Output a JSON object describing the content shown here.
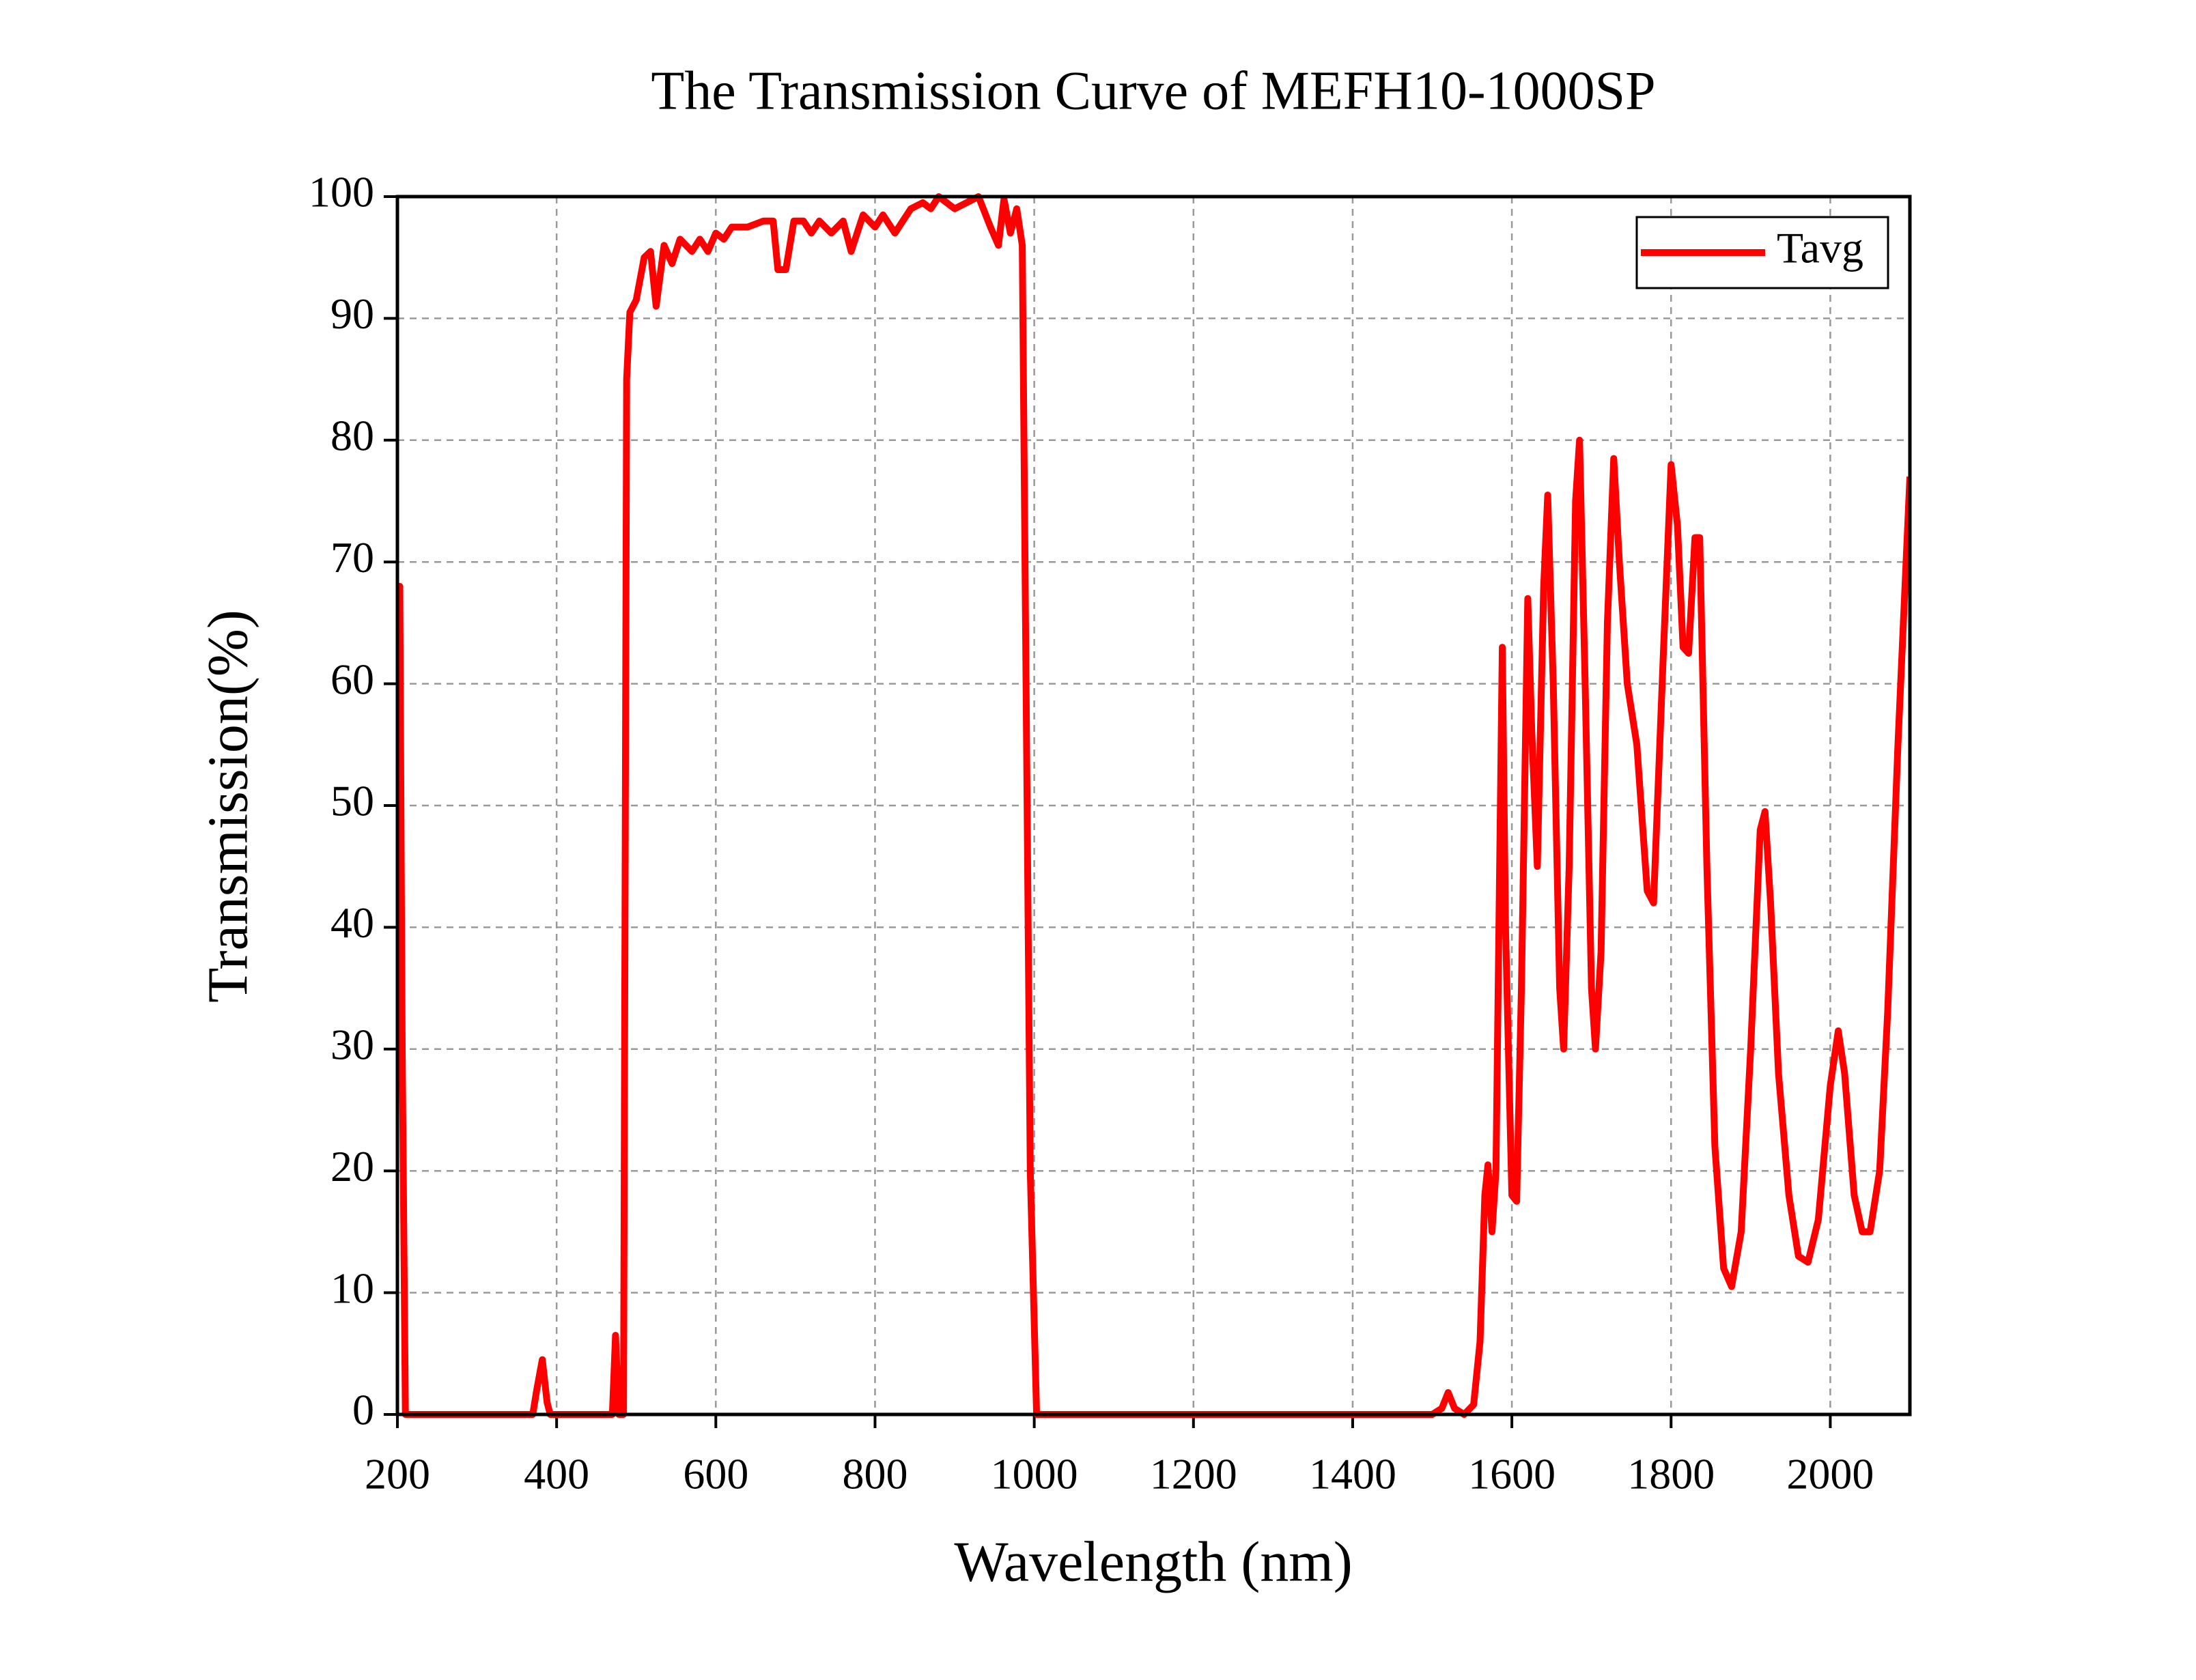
{
  "chart_data": {
    "type": "line",
    "title": "The Transmission Curve of MEFH10-1000SP",
    "x_label": "Wavelength (nm)",
    "y_label": "Transmission(%)",
    "xlim": [
      200,
      2100
    ],
    "xticks": [
      200,
      400,
      600,
      800,
      1000,
      1200,
      1400,
      1600,
      1800,
      2000
    ],
    "ylim": [
      0,
      100
    ],
    "yticks": [
      0,
      10,
      20,
      30,
      40,
      50,
      60,
      70,
      80,
      90,
      100
    ],
    "grid": true,
    "legend": "upper right",
    "x": [
      200,
      203,
      206,
      210,
      300,
      370,
      375,
      382,
      388,
      392,
      470,
      474,
      478,
      484,
      488,
      492,
      500,
      510,
      518,
      525,
      535,
      545,
      555,
      570,
      580,
      590,
      600,
      610,
      620,
      640,
      660,
      672,
      678,
      688,
      698,
      710,
      720,
      730,
      745,
      760,
      770,
      785,
      800,
      810,
      825,
      845,
      860,
      870,
      880,
      890,
      900,
      915,
      930,
      945,
      955,
      962,
      970,
      978,
      985,
      995,
      1003,
      1100,
      1500,
      1512,
      1520,
      1528,
      1540,
      1552,
      1560,
      1566,
      1570,
      1575,
      1580,
      1588,
      1592,
      1600,
      1606,
      1612,
      1620,
      1625,
      1632,
      1640,
      1645,
      1652,
      1660,
      1665,
      1672,
      1680,
      1685,
      1692,
      1700,
      1705,
      1712,
      1720,
      1728,
      1735,
      1745,
      1757,
      1770,
      1778,
      1790,
      1800,
      1808,
      1815,
      1822,
      1830,
      1836,
      1845,
      1855,
      1866,
      1876,
      1888,
      1900,
      1912,
      1918,
      1925,
      1935,
      1948,
      1960,
      1972,
      1985,
      2000,
      2010,
      2018,
      2030,
      2040,
      2050,
      2062,
      2072,
      2085,
      2100
    ],
    "series": [
      {
        "name": "Tavg",
        "color": "#ff0000",
        "values": [
          68,
          68,
          30,
          0,
          0,
          0,
          2,
          4.5,
          1,
          0,
          0,
          6.5,
          0,
          0,
          85,
          90.5,
          91.5,
          95,
          95.5,
          91,
          96,
          94.5,
          96.5,
          95.5,
          96.5,
          95.5,
          97,
          96.5,
          97.5,
          97.5,
          98,
          98,
          94,
          94,
          98,
          98,
          97,
          98,
          97,
          98,
          95.5,
          98.5,
          97.5,
          98.5,
          97,
          99,
          99.5,
          99,
          100,
          99.5,
          99,
          99.5,
          100,
          97.5,
          96,
          99.8,
          97,
          99,
          96,
          20,
          0,
          0,
          0,
          0.5,
          1.8,
          0.5,
          0,
          0.8,
          6,
          18,
          20.5,
          15,
          20,
          63,
          40,
          18,
          17.5,
          35,
          67,
          56,
          45,
          68,
          75.5,
          60,
          35,
          30,
          45,
          75,
          80,
          60,
          35,
          30,
          38,
          65,
          78.5,
          70,
          60,
          55,
          43,
          42,
          62,
          78,
          73,
          63,
          62.5,
          72,
          72,
          45,
          22,
          12,
          10.5,
          15,
          30,
          48,
          49.5,
          42,
          28,
          18,
          13,
          12.5,
          16,
          27,
          31.5,
          28,
          18,
          15,
          15,
          20,
          33,
          55,
          77
        ]
      }
    ]
  }
}
